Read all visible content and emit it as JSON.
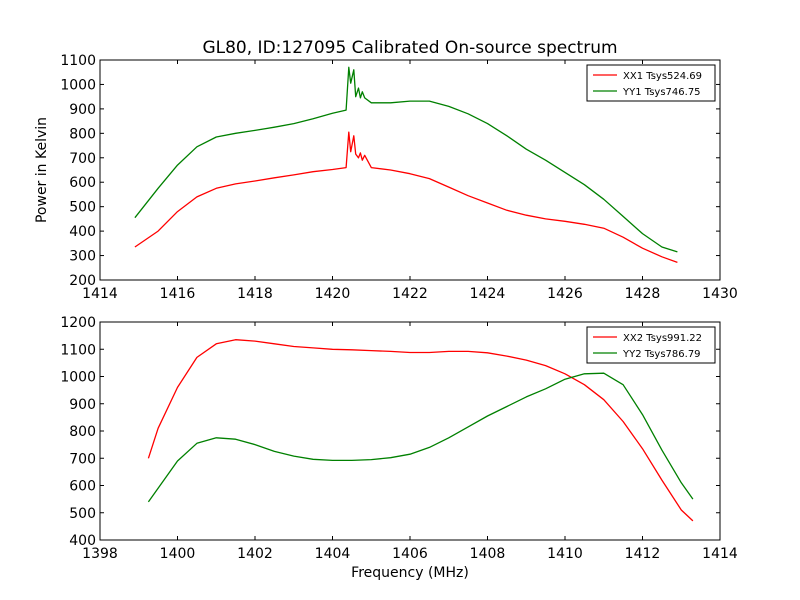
{
  "figure": {
    "title": "GL80, ID:127095 Calibrated On-source spectrum",
    "xlabel": "Frequency (MHz)"
  },
  "chart_data": [
    {
      "type": "line",
      "title": "GL80, ID:127095 Calibrated On-source spectrum",
      "xlabel": "",
      "ylabel": "Power in Kelvin",
      "xlim": [
        1414,
        1430
      ],
      "ylim": [
        200,
        1100
      ],
      "xticks": [
        1414,
        1416,
        1418,
        1420,
        1422,
        1424,
        1426,
        1428,
        1430
      ],
      "yticks": [
        200,
        300,
        400,
        500,
        600,
        700,
        800,
        900,
        1000,
        1100
      ],
      "grid": false,
      "legend_position": "top-right",
      "series": [
        {
          "name": "XX1 Tsys524.69",
          "color": "#ff0000",
          "x": [
            1414.9,
            1415.5,
            1416.0,
            1416.5,
            1417.0,
            1417.5,
            1418.0,
            1418.5,
            1419.0,
            1419.5,
            1420.0,
            1420.35,
            1420.42,
            1420.47,
            1420.55,
            1420.6,
            1420.67,
            1420.72,
            1420.77,
            1420.83,
            1421.0,
            1421.5,
            1422.0,
            1422.5,
            1423.0,
            1423.5,
            1424.0,
            1424.5,
            1425.0,
            1425.5,
            1426.0,
            1426.5,
            1427.0,
            1427.5,
            1428.0,
            1428.5,
            1428.9
          ],
          "y": [
            335,
            400,
            480,
            540,
            575,
            593,
            605,
            618,
            630,
            643,
            652,
            660,
            805,
            725,
            790,
            715,
            700,
            720,
            690,
            710,
            660,
            650,
            635,
            615,
            580,
            545,
            515,
            485,
            465,
            450,
            440,
            428,
            412,
            375,
            330,
            295,
            272
          ]
        },
        {
          "name": "YY1 Tsys746.75",
          "color": "#008000",
          "x": [
            1414.9,
            1415.5,
            1416.0,
            1416.5,
            1417.0,
            1417.5,
            1418.0,
            1418.5,
            1419.0,
            1419.5,
            1420.0,
            1420.35,
            1420.42,
            1420.47,
            1420.55,
            1420.6,
            1420.67,
            1420.72,
            1420.77,
            1420.83,
            1421.0,
            1421.5,
            1422.0,
            1422.5,
            1423.0,
            1423.5,
            1424.0,
            1424.5,
            1425.0,
            1425.5,
            1426.0,
            1426.5,
            1427.0,
            1427.5,
            1428.0,
            1428.5,
            1428.9
          ],
          "y": [
            455,
            575,
            670,
            745,
            785,
            800,
            812,
            825,
            840,
            860,
            882,
            895,
            1070,
            1005,
            1060,
            950,
            985,
            945,
            970,
            945,
            925,
            925,
            932,
            932,
            910,
            880,
            840,
            790,
            735,
            690,
            640,
            590,
            530,
            460,
            390,
            335,
            315
          ]
        }
      ]
    },
    {
      "type": "line",
      "title": "",
      "xlabel": "Frequency (MHz)",
      "ylabel": "",
      "xlim": [
        1398,
        1414
      ],
      "ylim": [
        400,
        1200
      ],
      "xticks": [
        1398,
        1400,
        1402,
        1404,
        1406,
        1408,
        1410,
        1412,
        1414
      ],
      "yticks": [
        400,
        500,
        600,
        700,
        800,
        900,
        1000,
        1100,
        1200
      ],
      "grid": false,
      "legend_position": "top-right",
      "series": [
        {
          "name": "XX2 Tsys991.22",
          "color": "#ff0000",
          "x": [
            1399.25,
            1399.5,
            1400.0,
            1400.5,
            1401.0,
            1401.5,
            1402.0,
            1402.5,
            1403.0,
            1403.5,
            1404.0,
            1404.5,
            1405.0,
            1405.5,
            1406.0,
            1406.5,
            1407.0,
            1407.5,
            1408.0,
            1408.5,
            1409.0,
            1409.5,
            1410.0,
            1410.5,
            1411.0,
            1411.5,
            1412.0,
            1412.5,
            1413.0,
            1413.3
          ],
          "y": [
            700,
            810,
            960,
            1070,
            1120,
            1135,
            1130,
            1120,
            1110,
            1105,
            1100,
            1098,
            1095,
            1092,
            1088,
            1088,
            1092,
            1092,
            1087,
            1075,
            1060,
            1040,
            1010,
            970,
            915,
            835,
            735,
            620,
            510,
            470
          ]
        },
        {
          "name": "YY2 Tsys786.79",
          "color": "#008000",
          "x": [
            1399.25,
            1399.5,
            1400.0,
            1400.5,
            1401.0,
            1401.5,
            1402.0,
            1402.5,
            1403.0,
            1403.5,
            1404.0,
            1404.5,
            1405.0,
            1405.5,
            1406.0,
            1406.5,
            1407.0,
            1407.5,
            1408.0,
            1408.5,
            1409.0,
            1409.5,
            1410.0,
            1410.5,
            1411.0,
            1411.5,
            1412.0,
            1412.5,
            1413.0,
            1413.3
          ],
          "y": [
            540,
            590,
            690,
            755,
            775,
            770,
            750,
            725,
            708,
            696,
            692,
            692,
            695,
            702,
            715,
            740,
            775,
            815,
            855,
            890,
            925,
            955,
            990,
            1010,
            1012,
            970,
            860,
            730,
            610,
            550
          ]
        }
      ]
    }
  ]
}
